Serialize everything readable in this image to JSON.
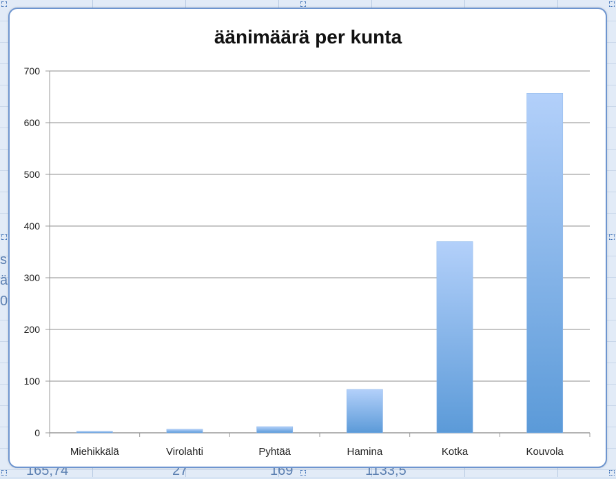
{
  "background_cells": [
    "s",
    "ä",
    "0",
    "165,74",
    "27",
    "169",
    "1133,5"
  ],
  "chart_data": {
    "type": "bar",
    "title": "äänimäärä per kunta",
    "xlabel": "",
    "ylabel": "",
    "categories": [
      "Miehikkälä",
      "Virolahti",
      "Pyhtää",
      "Hamina",
      "Kotka",
      "Kouvola"
    ],
    "values": [
      3,
      7,
      12,
      84,
      370,
      657
    ],
    "ylim": [
      0,
      700
    ],
    "yticks": [
      0,
      100,
      200,
      300,
      400,
      500,
      600,
      700
    ],
    "grid": true,
    "legend": "none",
    "colors": {
      "bar_top": "#b3d0fa",
      "bar_bottom": "#5b9ad8",
      "grid": "#c6c6c6"
    }
  }
}
